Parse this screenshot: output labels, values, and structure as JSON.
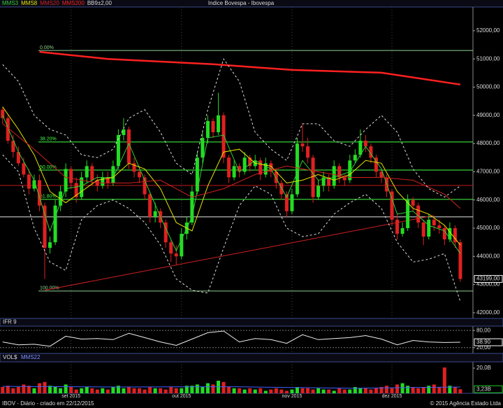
{
  "header": {
    "title": "Indice Bovespa - Ibovespa"
  },
  "footer": {
    "left": "IBOV - Diário - criado em 22/12/2015",
    "right": "© 2015 Agência Estado Ltda"
  },
  "chart_data": [
    {
      "type": "candlestick",
      "xlim": [
        -0.5,
        89.4
      ],
      "ylim": [
        41800,
        52840
      ],
      "yticks": [
        {
          "value": 52000,
          "label": "52000,00"
        },
        {
          "value": 51000,
          "label": "51000,00"
        },
        {
          "value": 50000,
          "label": "50000,00"
        },
        {
          "value": 49000,
          "label": "49000,00"
        },
        {
          "value": 48000,
          "label": "48000,00"
        },
        {
          "value": 47000,
          "label": "47000,00"
        },
        {
          "value": 46000,
          "label": "46000,00"
        },
        {
          "value": 45000,
          "label": "45000,00"
        },
        {
          "value": 44000,
          "label": "44000,00"
        },
        {
          "value": 43000,
          "label": "43000,00"
        },
        {
          "value": 42000,
          "label": "42000,00"
        }
      ],
      "xticks": [
        {
          "value": 13,
          "label": "set 2015"
        },
        {
          "value": 34,
          "label": "out 2015"
        },
        {
          "value": 55,
          "label": "nov 2015"
        },
        {
          "value": 74,
          "label": "dez 2015"
        }
      ],
      "up_color": "#22dd22",
      "down_color": "#e02020",
      "open": [
        49200,
        48900,
        48100,
        47700,
        47300,
        46900,
        46400,
        46700,
        45800,
        44300,
        44500,
        45800,
        46300,
        47100,
        46600,
        46100,
        46800,
        47200,
        46700,
        46500,
        46800,
        46600,
        47200,
        48300,
        48500,
        47300,
        47000,
        46800,
        46200,
        45400,
        45600,
        45200,
        44500,
        44100,
        44000,
        44800,
        45200,
        46300,
        47500,
        48200,
        48800,
        48400,
        49000,
        47500,
        46800,
        47200,
        47000,
        47500,
        47200,
        47400,
        46900,
        47300,
        47000,
        46600,
        46200,
        45600,
        46200,
        48000,
        47900,
        47500,
        46100,
        46500,
        46800,
        46500,
        47200,
        46800,
        46700,
        47400,
        47600,
        48100,
        47900,
        47500,
        47000,
        46800,
        46300,
        45300,
        44800,
        45000,
        46000,
        45800,
        45200,
        44700,
        45300,
        45100,
        45000,
        44600,
        45000,
        44500
      ],
      "high": [
        49300,
        49000,
        48300,
        47900,
        47500,
        47100,
        46900,
        46900,
        45900,
        44700,
        46000,
        46500,
        47300,
        47200,
        46800,
        47000,
        47400,
        47300,
        46900,
        47000,
        47000,
        47400,
        48500,
        48900,
        48600,
        47500,
        47200,
        46900,
        46300,
        45900,
        45700,
        45300,
        44600,
        44400,
        45000,
        45400,
        46500,
        47700,
        48400,
        49000,
        48900,
        49800,
        49100,
        47600,
        47400,
        47300,
        47700,
        47600,
        47600,
        47500,
        47500,
        47400,
        47100,
        46700,
        46300,
        46400,
        48200,
        48700,
        48200,
        47600,
        46700,
        47000,
        46900,
        47400,
        47300,
        46900,
        47600,
        47800,
        48500,
        48300,
        48000,
        47600,
        47100,
        46900,
        46400,
        45500,
        45200,
        46200,
        46100,
        45900,
        45300,
        45500,
        45400,
        45300,
        45100,
        45200,
        45100,
        44600
      ],
      "low": [
        48700,
        48000,
        47500,
        47200,
        46800,
        46200,
        46300,
        45600,
        43200,
        44100,
        44400,
        45600,
        46100,
        46400,
        45900,
        46000,
        46600,
        46500,
        46300,
        46400,
        46400,
        46500,
        47100,
        48100,
        47100,
        46800,
        46600,
        46000,
        45200,
        45200,
        45000,
        44300,
        43800,
        43700,
        43900,
        44600,
        45100,
        46200,
        47300,
        48000,
        48200,
        48300,
        47300,
        46600,
        46700,
        46800,
        46900,
        47000,
        47100,
        46700,
        46800,
        46800,
        46400,
        46000,
        45400,
        45500,
        46100,
        47700,
        47300,
        45900,
        46000,
        46300,
        46300,
        46400,
        46600,
        46500,
        46600,
        47300,
        47500,
        47700,
        47300,
        46800,
        46600,
        46100,
        45100,
        44600,
        44700,
        44900,
        45600,
        45000,
        44400,
        44600,
        44900,
        44800,
        44400,
        44500,
        44300,
        43100
      ],
      "close": [
        48900,
        48100,
        47700,
        47300,
        46900,
        46400,
        46700,
        45800,
        44300,
        44500,
        45800,
        46300,
        47100,
        46600,
        46100,
        46800,
        47200,
        46700,
        46500,
        46800,
        46600,
        47200,
        48300,
        48500,
        47300,
        47000,
        46800,
        46200,
        45400,
        45600,
        45200,
        44500,
        44100,
        44000,
        44800,
        45200,
        46300,
        47500,
        48200,
        48800,
        48400,
        49000,
        47500,
        46800,
        47200,
        47000,
        47500,
        47200,
        47400,
        46900,
        47300,
        47000,
        46600,
        46200,
        45600,
        46200,
        48000,
        47900,
        47500,
        46100,
        46500,
        46800,
        46500,
        47200,
        46800,
        46700,
        47400,
        47600,
        48100,
        47900,
        47500,
        47000,
        46800,
        46300,
        45300,
        44800,
        45000,
        46000,
        45800,
        45200,
        44700,
        45300,
        45100,
        45000,
        44600,
        45000,
        44500,
        43199
      ],
      "current": {
        "value": 43199,
        "label": "43199,00"
      },
      "series": [
        {
          "name": "MMS3",
          "color": "#33cc33",
          "width": 1,
          "x": [
            0,
            3,
            6,
            9,
            12,
            15,
            18,
            21,
            24,
            27,
            30,
            33,
            36,
            39,
            42,
            45,
            48,
            51,
            54,
            57,
            60,
            63,
            66,
            69,
            72,
            75,
            78,
            81,
            84,
            87
          ],
          "values": [
            49000,
            47700,
            46700,
            44900,
            46400,
            46500,
            46800,
            46800,
            48000,
            46700,
            45400,
            44200,
            45400,
            48200,
            48300,
            47000,
            47400,
            47100,
            46100,
            47400,
            46700,
            46800,
            47000,
            47900,
            47100,
            45500,
            45600,
            45100,
            44900,
            44100
          ]
        },
        {
          "name": "MMS8",
          "color": "#e6e600",
          "width": 1,
          "x": [
            0,
            3,
            6,
            9,
            12,
            15,
            18,
            21,
            24,
            27,
            30,
            33,
            36,
            39,
            42,
            45,
            48,
            51,
            54,
            57,
            60,
            63,
            66,
            69,
            72,
            75,
            78,
            81,
            84,
            87
          ],
          "values": [
            49300,
            48500,
            47600,
            46300,
            45900,
            46300,
            46700,
            46800,
            47300,
            47100,
            46400,
            45200,
            44900,
            46500,
            47700,
            47800,
            47300,
            47200,
            46600,
            46700,
            46900,
            46700,
            46900,
            47400,
            47300,
            46300,
            45700,
            45500,
            45100,
            44400
          ]
        },
        {
          "name": "MMS20",
          "color": "#d02020",
          "width": 1,
          "x": [
            0,
            6,
            12,
            18,
            24,
            30,
            36,
            42,
            48,
            54,
            60,
            66,
            72,
            78,
            84,
            87
          ],
          "values": [
            48700,
            47800,
            46800,
            46600,
            46600,
            46700,
            46100,
            46400,
            46900,
            47200,
            47000,
            46800,
            46800,
            46700,
            46200,
            45700
          ]
        },
        {
          "name": "MMS200",
          "color": "#ff2020",
          "width": 2.5,
          "x": [
            7,
            20,
            40,
            55,
            72,
            87
          ],
          "values": [
            51250,
            51000,
            50810,
            50610,
            50510,
            50090
          ]
        },
        {
          "name": "BB9±2,00",
          "color": "#dddddd",
          "width": 1,
          "dash": "3,3",
          "x": [
            0,
            3,
            6,
            9,
            12,
            15,
            18,
            21,
            24,
            27,
            30,
            33,
            36,
            39,
            42,
            45,
            48,
            51,
            54,
            57,
            60,
            63,
            66,
            69,
            72,
            75,
            78,
            81,
            84,
            87
          ],
          "upper": [
            50800,
            50200,
            49000,
            48500,
            48300,
            47600,
            47500,
            47800,
            48900,
            49200,
            48400,
            47300,
            46900,
            49200,
            51000,
            50200,
            48400,
            47800,
            47400,
            48700,
            48700,
            48100,
            47900,
            48500,
            49000,
            48400,
            47100,
            46400,
            46100,
            46500
          ],
          "lower": [
            47600,
            47000,
            45000,
            43800,
            43500,
            45300,
            45800,
            46000,
            45700,
            45200,
            44400,
            43200,
            42800,
            42700,
            44300,
            45800,
            46500,
            46200,
            45000,
            44700,
            44800,
            45500,
            45900,
            46200,
            45700,
            44500,
            43800,
            43900,
            44100,
            42400
          ]
        }
      ],
      "levels": [
        {
          "label": "0.00%",
          "value": 51300,
          "color": "#8fcf8f"
        },
        {
          "label": "38.20%",
          "value": 48055,
          "color": "#44ff44"
        },
        {
          "label": "50.00%",
          "value": 47060,
          "color": "#44ff44"
        },
        {
          "label": "61.80%",
          "value": 46020,
          "color": "#44ff44"
        },
        {
          "label": "100.00%",
          "value": 42770,
          "color": "#8fcf8f"
        }
      ],
      "hlines": [
        {
          "value": 46515,
          "color": "#c01818"
        },
        {
          "value": 45400,
          "color": "#e8e8e8"
        }
      ],
      "trendline": {
        "x": [
          8,
          82
        ],
        "values": [
          42800,
          45450
        ],
        "color": "#d02020"
      }
    },
    {
      "type": "line",
      "title": "IFR 9",
      "ylim": [
        0,
        95
      ],
      "yticks": [
        {
          "value": 80,
          "label": "80,00"
        },
        {
          "value": 20,
          "label": "20,00"
        }
      ],
      "color": "#eeeeee",
      "x": [
        0,
        3,
        6,
        9,
        12,
        15,
        18,
        21,
        24,
        27,
        30,
        33,
        36,
        39,
        42,
        45,
        48,
        51,
        54,
        57,
        60,
        63,
        66,
        69,
        72,
        75,
        78,
        81,
        84,
        87
      ],
      "values": [
        40,
        30,
        32,
        25,
        60,
        50,
        52,
        48,
        70,
        55,
        40,
        28,
        50,
        72,
        78,
        40,
        52,
        48,
        35,
        65,
        48,
        52,
        55,
        62,
        50,
        30,
        45,
        40,
        38,
        38.9
      ],
      "current": {
        "value": 38.9,
        "label": "38.90"
      }
    },
    {
      "type": "bar",
      "title": "VOL$",
      "ylim": [
        0,
        25
      ],
      "yticks": [
        {
          "value": 20,
          "label": "20,0B"
        }
      ],
      "values": [
        5,
        6,
        4,
        5,
        7,
        6,
        4,
        8,
        9,
        6,
        5,
        4,
        7,
        5,
        3,
        4,
        5,
        4,
        3,
        4,
        3,
        5,
        6,
        4,
        5,
        4,
        4,
        3,
        5,
        4,
        4,
        3,
        5,
        4,
        4,
        6,
        6,
        7,
        5,
        8,
        7,
        10,
        9,
        5,
        4,
        4,
        3,
        4,
        3,
        4,
        2,
        3,
        4,
        3,
        2,
        3,
        5,
        4,
        4,
        3,
        4,
        3,
        3,
        2,
        4,
        3,
        3,
        5,
        4,
        4,
        3,
        4,
        5,
        6,
        4,
        7,
        8,
        6,
        5,
        4,
        5,
        6,
        7,
        5,
        20.5,
        6,
        5,
        3.23
      ],
      "ma": {
        "name": "MMS22",
        "color": "#4060ff",
        "x": [
          0,
          22,
          44,
          66,
          87
        ],
        "values": [
          5.5,
          5,
          5.2,
          4,
          5
        ]
      },
      "current": {
        "value": 3.23,
        "label": "3,23B"
      }
    }
  ]
}
